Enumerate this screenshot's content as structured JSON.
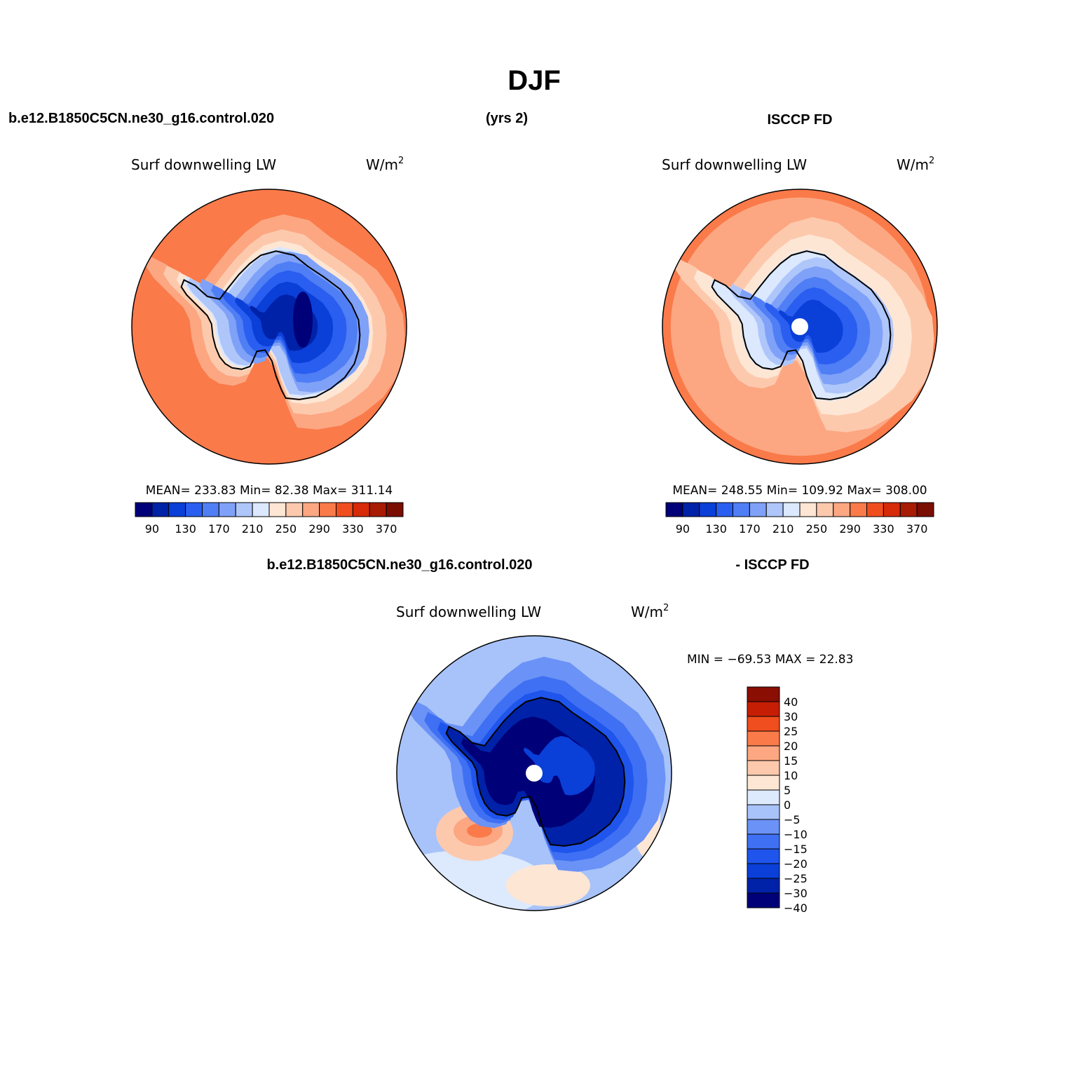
{
  "page": {
    "title": "DJF",
    "top_left_case": "b.e12.B1850C5CN.ne30_g16.control.020",
    "top_years": "(yrs 2)",
    "top_right_case": "ISCCP FD",
    "diff_left_case": "b.e12.B1850C5CN.ne30_g16.control.020",
    "diff_right_case": "- ISCCP FD"
  },
  "colors": {
    "abs_palette": [
      "#000078",
      "#0022a8",
      "#0a3fd8",
      "#2a5ef0",
      "#4f7ef5",
      "#7fa1f7",
      "#afc6fb",
      "#dbe8fd",
      "#fee6d4",
      "#fdc9ad",
      "#fca782",
      "#fa7a4a",
      "#f04e1e",
      "#d62a08",
      "#a81b04",
      "#7a0e02"
    ],
    "diff_palette": [
      "#000078",
      "#0022a8",
      "#0a3fd8",
      "#1f55ec",
      "#3f70f3",
      "#6b92f6",
      "#a8c3fa",
      "#dde9fd",
      "#fee6d4",
      "#fdc9ad",
      "#fca782",
      "#fa7a4a",
      "#f04e1e",
      "#c61e04",
      "#8a0e02"
    ],
    "antarctica_outline": "#000000"
  },
  "chart_data": [
    {
      "type": "heatmap",
      "projection": "south-polar-stereographic",
      "field_title": "Surf downwelling LW",
      "units": "W/m",
      "units_sup": "2",
      "stats_text": "MEAN= 233.83   Min=  82.38   Max= 311.14",
      "mean": 233.83,
      "min": 82.38,
      "max": 311.14,
      "colorbar": {
        "orientation": "horizontal",
        "levels": [
          80,
          90,
          110,
          130,
          150,
          170,
          190,
          210,
          230,
          250,
          270,
          290,
          310,
          330,
          350,
          370
        ],
        "tick_labels": [
          "90",
          "130",
          "170",
          "210",
          "250",
          "290",
          "330",
          "370"
        ]
      },
      "pole_value": 82.38
    },
    {
      "type": "heatmap",
      "projection": "south-polar-stereographic",
      "field_title": "Surf downwelling LW",
      "units": "W/m",
      "units_sup": "2",
      "stats_text": "MEAN= 248.55   Min= 109.92   Max= 308.00",
      "mean": 248.55,
      "min": 109.92,
      "max": 308.0,
      "colorbar": {
        "orientation": "horizontal",
        "levels": [
          80,
          90,
          110,
          130,
          150,
          170,
          190,
          210,
          230,
          250,
          270,
          290,
          310,
          330,
          350,
          370
        ],
        "tick_labels": [
          "90",
          "130",
          "170",
          "210",
          "250",
          "290",
          "330",
          "370"
        ]
      },
      "pole_missing": true
    },
    {
      "type": "heatmap",
      "projection": "south-polar-stereographic",
      "field_title": "Surf downwelling LW",
      "units": "W/m",
      "units_sup": "2",
      "stats_text": "MIN = −69.53 MAX =  22.83",
      "min": -69.53,
      "max": 22.83,
      "colorbar": {
        "orientation": "vertical",
        "levels": [
          -40,
          -30,
          -25,
          -20,
          -15,
          -10,
          -5,
          0,
          5,
          10,
          15,
          20,
          25,
          30,
          40
        ],
        "tick_labels": [
          "40",
          "30",
          "25",
          "20",
          "15",
          "10",
          "5",
          "0",
          "−5",
          "−10",
          "−15",
          "−20",
          "−25",
          "−30",
          "−40"
        ]
      },
      "pole_missing": true
    }
  ]
}
